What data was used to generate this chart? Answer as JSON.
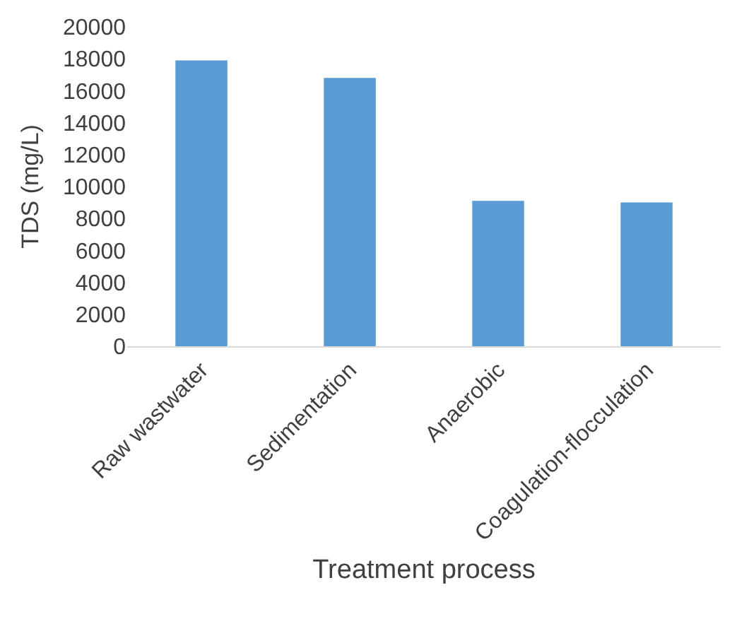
{
  "chart_data": {
    "type": "bar",
    "xlabel": "Treatment process",
    "ylabel": "TDS (mg/L)",
    "categories": [
      "Raw wastwater",
      "Sedimentation",
      "Anaerobic",
      "Coagulation-flocculation"
    ],
    "values": [
      17900,
      16800,
      9100,
      9000
    ],
    "color": "#5b9bd5",
    "ylim": [
      0,
      20000
    ],
    "yticks": [
      0,
      2000,
      4000,
      6000,
      8000,
      10000,
      12000,
      14000,
      16000,
      18000,
      20000
    ],
    "grid": false
  }
}
